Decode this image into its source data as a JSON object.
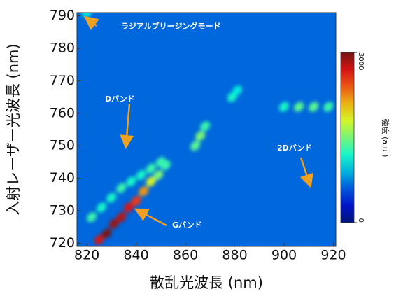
{
  "chart_data": {
    "type": "heatmap",
    "xlabel": "散乱光波長 (nm)",
    "ylabel": "入射レーザー光波長 (nm)",
    "xlim": [
      816,
      921
    ],
    "ylim": [
      719,
      791
    ],
    "xticks": [
      820,
      840,
      860,
      880,
      900,
      920
    ],
    "yticks": [
      720,
      730,
      740,
      750,
      760,
      770,
      780,
      790
    ],
    "colormap": "jet",
    "background": 650,
    "x": [
      825,
      828,
      831,
      834,
      837,
      840,
      843,
      846,
      849,
      852,
      822,
      826,
      830,
      834,
      838,
      842,
      846,
      850,
      864,
      866,
      868,
      879,
      881,
      900,
      906,
      912,
      918,
      820
    ],
    "y": [
      721,
      723,
      726,
      728,
      731,
      733,
      736,
      739,
      741,
      744,
      728,
      731,
      734,
      737,
      739,
      741,
      743,
      745,
      750,
      753,
      756,
      765,
      767,
      762,
      762,
      762,
      762,
      791
    ],
    "values": [
      2700,
      3000,
      2900,
      2800,
      2700,
      2500,
      2200,
      1800,
      1500,
      1300,
      1300,
      1200,
      1200,
      1300,
      1200,
      1200,
      1300,
      1300,
      1400,
      1500,
      1300,
      1200,
      1100,
      1200,
      1400,
      1400,
      1300,
      1100
    ],
    "colorbar": {
      "label": "強度 (a.u.)",
      "clim": [
        0,
        3000
      ],
      "ticks": [
        0,
        3000
      ]
    },
    "annotations": [
      {
        "text": "ラジアルブリージングモード"
      },
      {
        "text": "Dバンド"
      },
      {
        "text": "Gバンド"
      },
      {
        "text": "2Dバンド"
      }
    ]
  }
}
